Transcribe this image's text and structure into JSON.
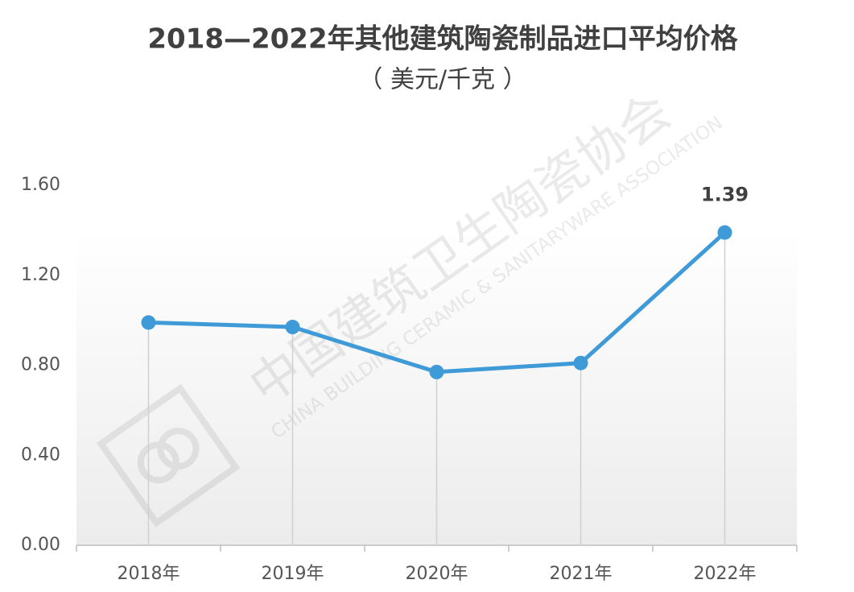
{
  "chart_data": {
    "type": "line",
    "title": "2018—2022年其他建筑陶瓷制品进口平均价格",
    "subtitle": "（ 美元/千克 ）",
    "watermark": {
      "cn": "中国建筑卫生陶瓷协会",
      "en": "CHINA BUILDING CERAMIC & SANITARYWARE ASSOCIATION"
    },
    "categories": [
      "2018年",
      "2019年",
      "2020年",
      "2021年",
      "2022年"
    ],
    "values": [
      0.99,
      0.97,
      0.77,
      0.81,
      1.39
    ],
    "value_labels": [
      null,
      null,
      null,
      null,
      "1.39"
    ],
    "color": "#3f9ad8",
    "ylim": [
      0,
      1.6
    ],
    "yticks": [
      {
        "value": 0,
        "label": "0.00"
      },
      {
        "value": 0.4,
        "label": "0.40"
      },
      {
        "value": 0.8,
        "label": "0.80"
      },
      {
        "value": 1.2,
        "label": "1.20"
      },
      {
        "value": 1.6,
        "label": "1.60"
      }
    ],
    "grid": false
  }
}
